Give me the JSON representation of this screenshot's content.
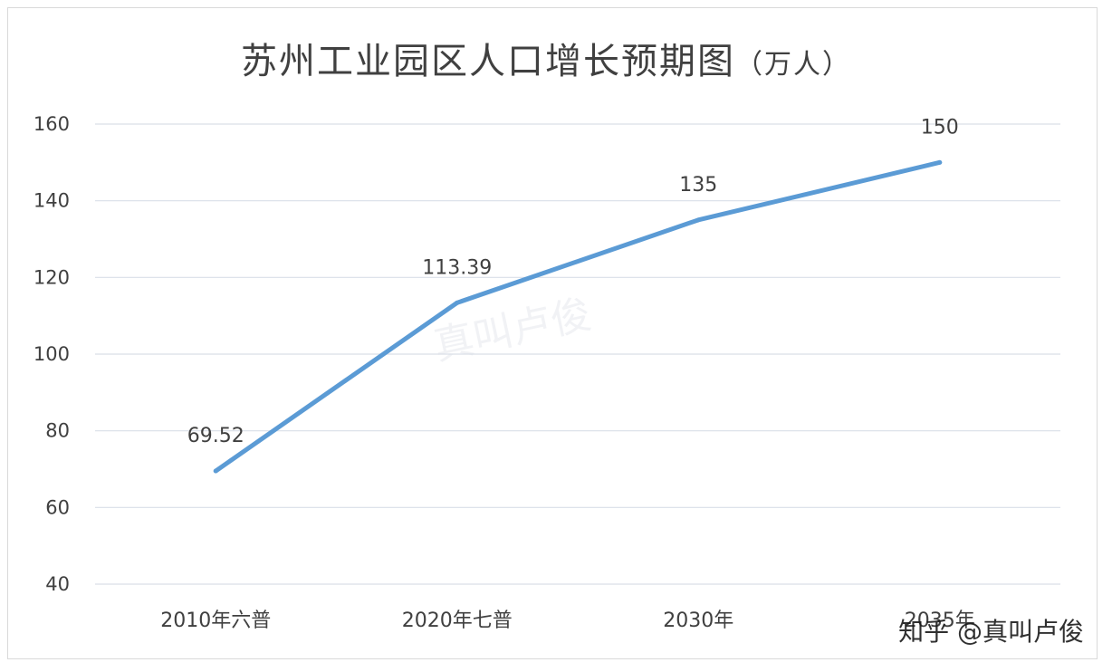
{
  "chart_data": {
    "type": "line",
    "title": "苏州工业园区人口增长预期图",
    "title_unit": "（万人）",
    "categories": [
      "2010年六普",
      "2020年七普",
      "2030年",
      "2035年"
    ],
    "series": [
      {
        "values": [
          69.52,
          113.39,
          135,
          150
        ],
        "data_labels": [
          "69.52",
          "113.39",
          "135",
          "150"
        ],
        "color": "#5b9bd5"
      }
    ],
    "ylim": [
      40,
      160
    ],
    "yticks": [
      40,
      60,
      80,
      100,
      120,
      140,
      160
    ],
    "grid": true,
    "legend": "none"
  },
  "watermark": {
    "text": "知乎 @真叫卢俊",
    "background_text": "真叫卢俊"
  },
  "colors": {
    "series": "#5b9bd5",
    "text": "#404040",
    "grid": "#d9dfe8"
  }
}
